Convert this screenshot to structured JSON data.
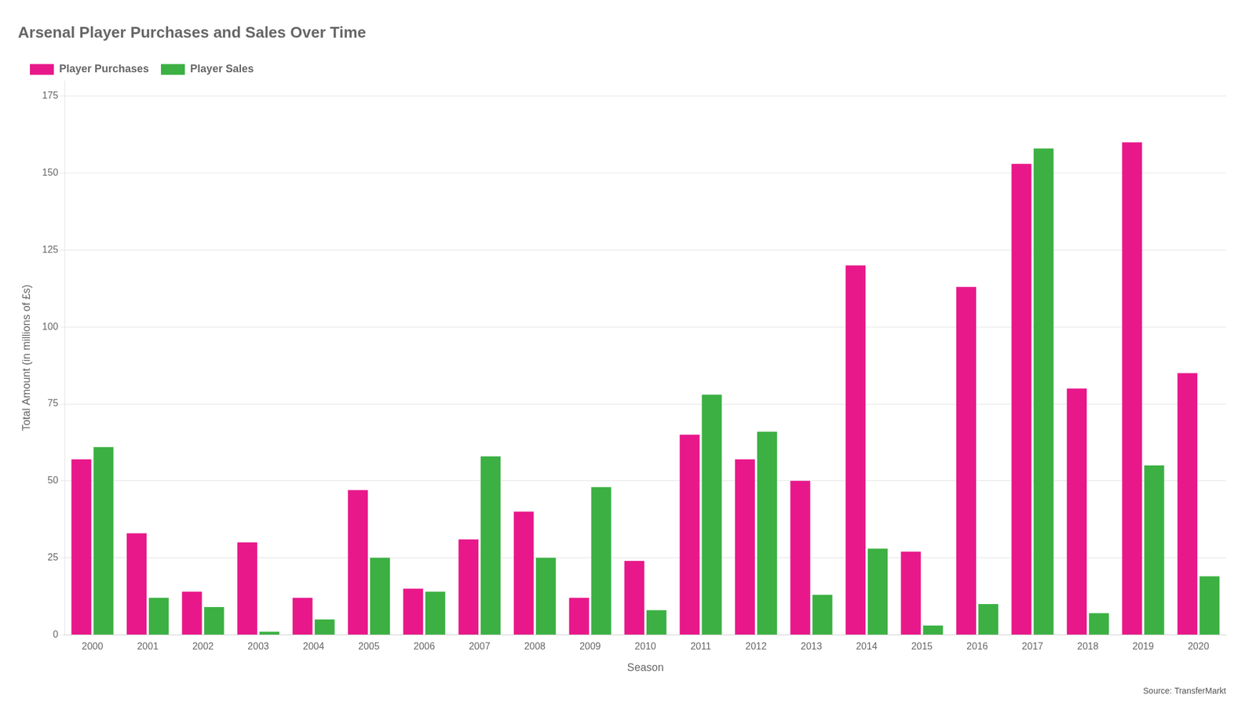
{
  "chart_data": {
    "type": "bar",
    "title": "Arsenal Player Purchases and Sales Over Time",
    "xlabel": "Season",
    "ylabel": "Total Amount (in millions of £s)",
    "categories": [
      "2000",
      "2001",
      "2002",
      "2003",
      "2004",
      "2005",
      "2006",
      "2007",
      "2008",
      "2009",
      "2010",
      "2011",
      "2012",
      "2013",
      "2014",
      "2015",
      "2016",
      "2017",
      "2018",
      "2019",
      "2020"
    ],
    "series": [
      {
        "name": "Player Purchases",
        "color": "#E8188A",
        "values": [
          57,
          33,
          14,
          30,
          12,
          47,
          15,
          31,
          40,
          12,
          24,
          65,
          57,
          50,
          120,
          27,
          113,
          153,
          80,
          160,
          85
        ]
      },
      {
        "name": "Player Sales",
        "color": "#3CB043",
        "values": [
          61,
          12,
          9,
          1,
          5,
          25,
          14,
          58,
          25,
          48,
          8,
          78,
          66,
          13,
          28,
          3,
          10,
          158,
          7,
          55,
          19
        ]
      }
    ],
    "annotations": [
      "Source: TransferMarkt"
    ],
    "ylim": [
      0,
      180
    ],
    "yticks": [
      0,
      25,
      50,
      75,
      100,
      125,
      150,
      175
    ],
    "grid": true,
    "legend": "top"
  }
}
